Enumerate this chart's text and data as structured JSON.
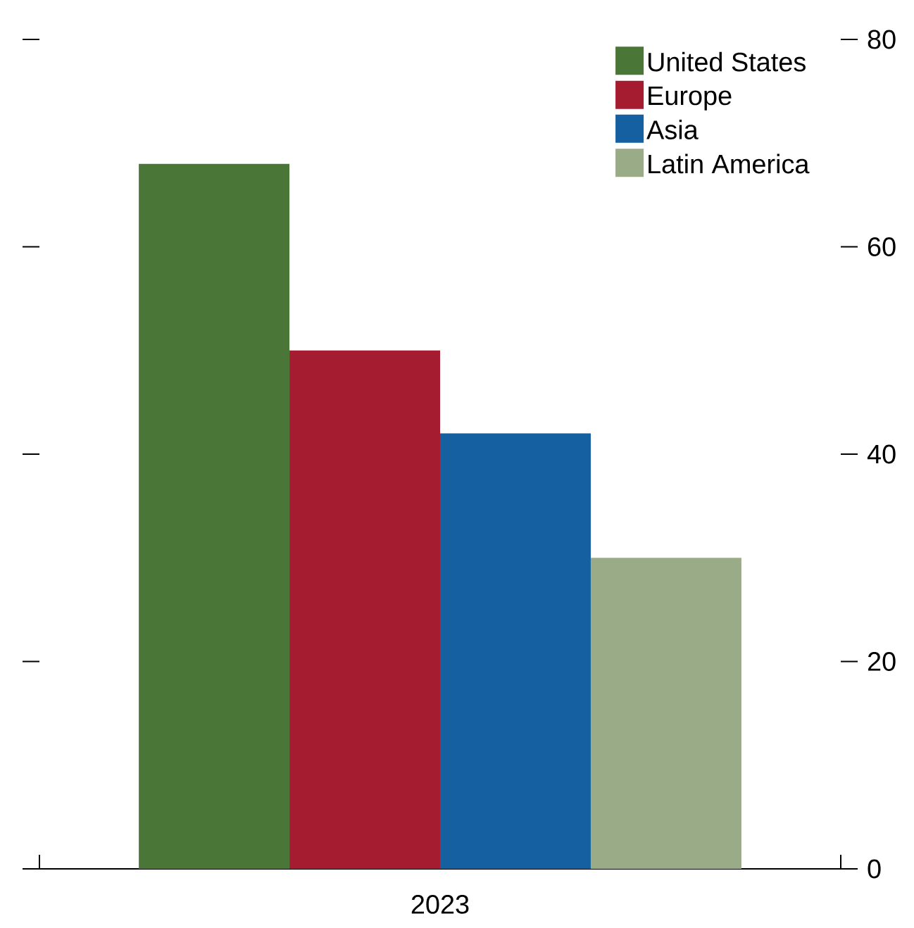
{
  "chart_data": {
    "type": "bar",
    "categories": [
      "2023"
    ],
    "series": [
      {
        "name": "United States",
        "color": "#4a7638",
        "values": [
          68
        ]
      },
      {
        "name": "Europe",
        "color": "#a51c30",
        "values": [
          50
        ]
      },
      {
        "name": "Asia",
        "color": "#1560a0",
        "values": [
          42
        ]
      },
      {
        "name": "Latin America",
        "color": "#9aab87",
        "values": [
          30
        ]
      }
    ],
    "ylim": [
      0,
      80
    ],
    "yticks": [
      0,
      20,
      40,
      60,
      80
    ],
    "legend": "top right",
    "grid": false
  }
}
